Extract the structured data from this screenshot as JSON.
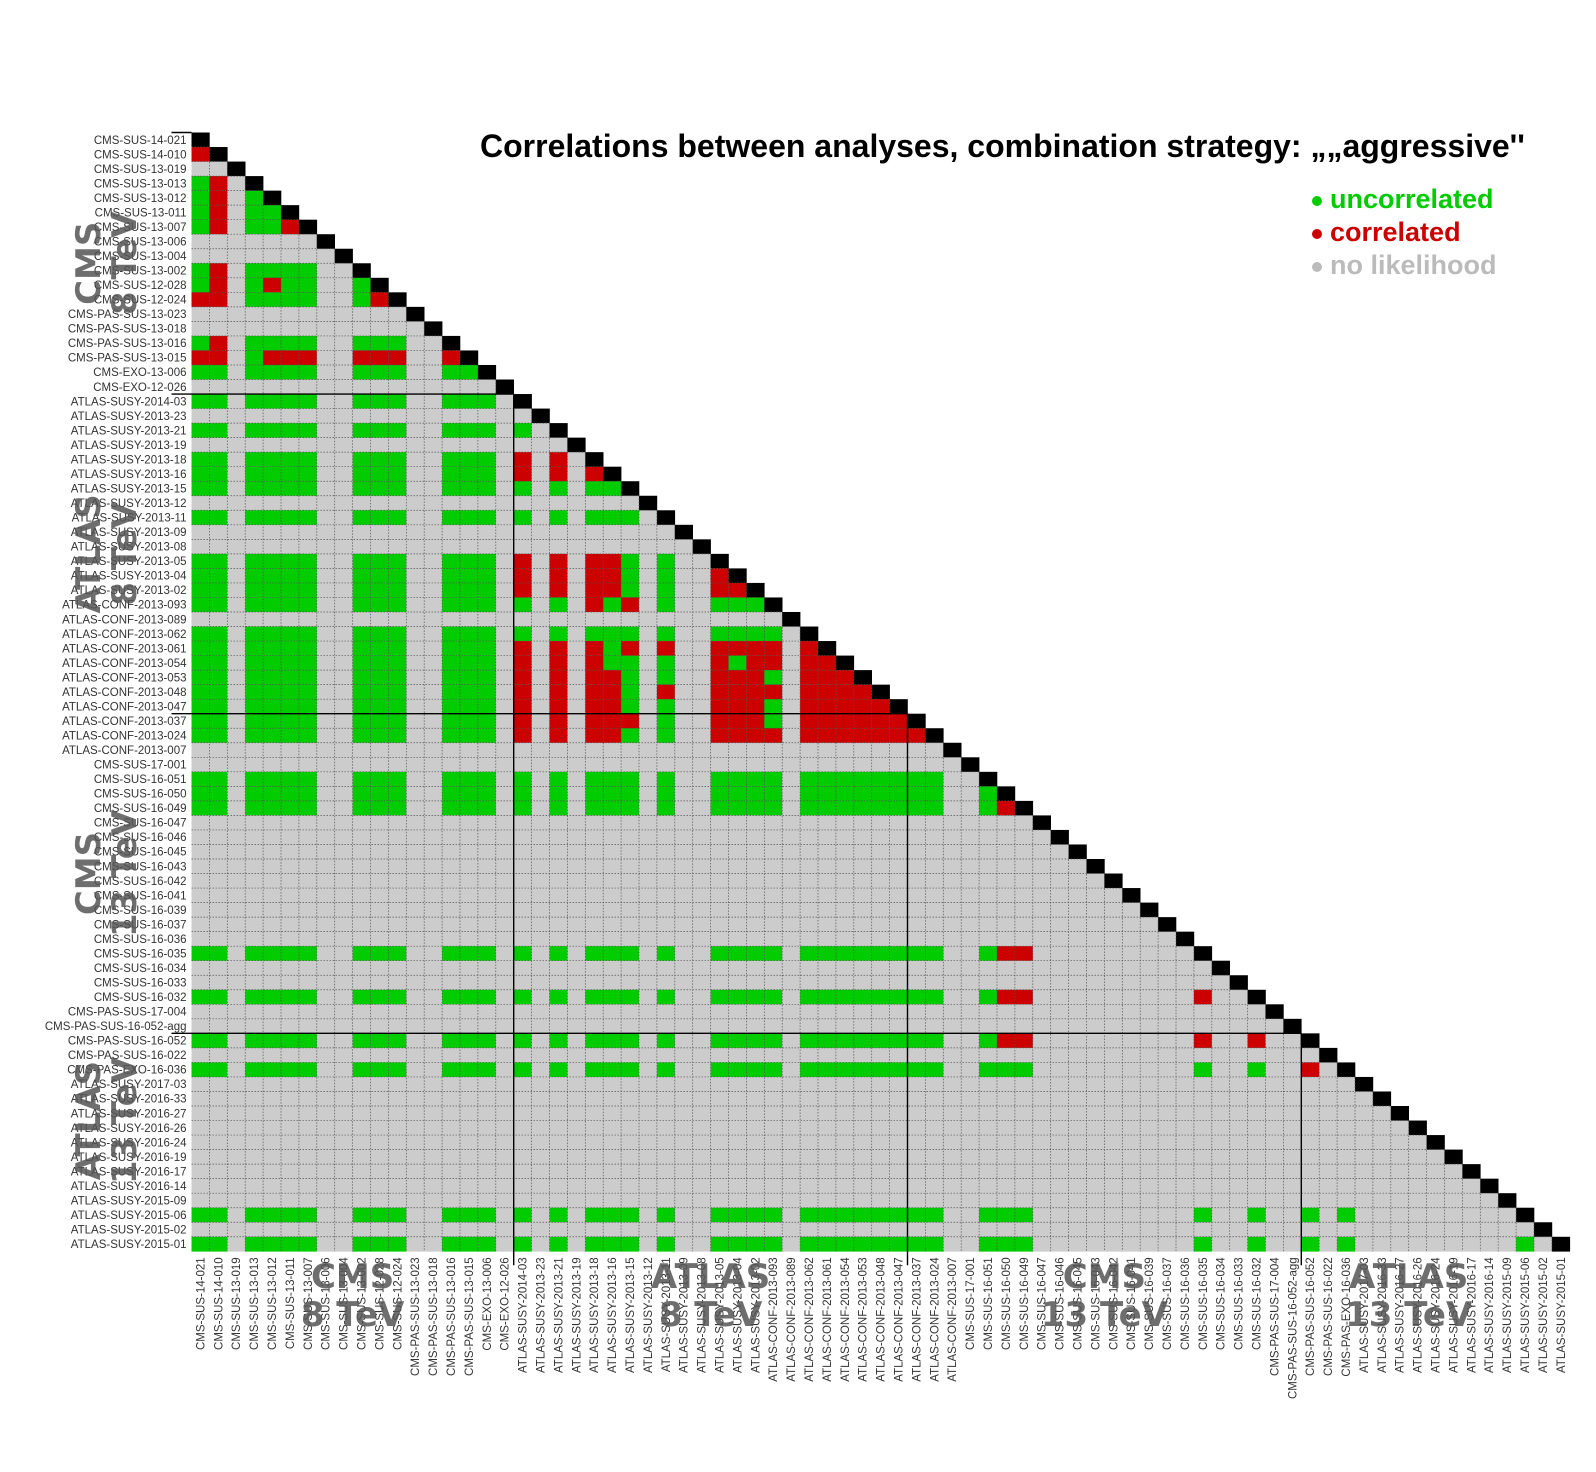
{
  "title": "Correlations between analyses, combination strategy: „„aggressive''",
  "legend": [
    {
      "label": "uncorrelated",
      "color": "#00cc00"
    },
    {
      "label": "correlated",
      "color": "#cc0000"
    },
    {
      "label": "no likelihood",
      "color": "#bbbbbb"
    }
  ],
  "groups": [
    {
      "name": "CMS 8 TeV",
      "line1": "CMS",
      "line2": "8 TeV"
    },
    {
      "name": "ATLAS 8 TeV",
      "line1": "ATLAS",
      "line2": "8 TeV"
    },
    {
      "name": "CMS 13 TeV",
      "line1": "CMS",
      "line2": "13 TeV"
    },
    {
      "name": "ATLAS 13 TeV",
      "line1": "ATLAS",
      "line2": "13 TeV"
    }
  ],
  "chart_data": {
    "type": "heatmap",
    "title": "Correlations between analyses, combination strategy: „„aggressive''",
    "categories_legend": {
      "G": "uncorrelated",
      "R": "correlated",
      "X": "no likelihood",
      "D": "diagonal"
    },
    "colors": {
      "G": "#00cc00",
      "R": "#cc0000",
      "X": "#cccccc",
      "D": "#000000",
      "grid": "#555555"
    },
    "group_sizes": [
      18,
      22,
      22,
      12
    ],
    "labels": [
      "CMS-SUS-14-021",
      "CMS-SUS-14-010",
      "CMS-SUS-13-019",
      "CMS-SUS-13-013",
      "CMS-SUS-13-012",
      "CMS-SUS-13-011",
      "CMS-SUS-13-007",
      "CMS-SUS-13-006",
      "CMS-SUS-13-004",
      "CMS-SUS-13-002",
      "CMS-SUS-12-028",
      "CMS-SUS-12-024",
      "CMS-PAS-SUS-13-023",
      "CMS-PAS-SUS-13-018",
      "CMS-PAS-SUS-13-016",
      "CMS-PAS-SUS-13-015",
      "CMS-EXO-13-006",
      "CMS-EXO-12-026",
      "ATLAS-SUSY-2014-03",
      "ATLAS-SUSY-2013-23",
      "ATLAS-SUSY-2013-21",
      "ATLAS-SUSY-2013-19",
      "ATLAS-SUSY-2013-18",
      "ATLAS-SUSY-2013-16",
      "ATLAS-SUSY-2013-15",
      "ATLAS-SUSY-2013-12",
      "ATLAS-SUSY-2013-11",
      "ATLAS-SUSY-2013-09",
      "ATLAS-SUSY-2013-08",
      "ATLAS-SUSY-2013-05",
      "ATLAS-SUSY-2013-04",
      "ATLAS-SUSY-2013-02",
      "ATLAS-CONF-2013-093",
      "ATLAS-CONF-2013-089",
      "ATLAS-CONF-2013-062",
      "ATLAS-CONF-2013-061",
      "ATLAS-CONF-2013-054",
      "ATLAS-CONF-2013-053",
      "ATLAS-CONF-2013-048",
      "ATLAS-CONF-2013-047",
      "ATLAS-CONF-2013-037",
      "ATLAS-CONF-2013-024",
      "ATLAS-CONF-2013-007",
      "CMS-SUS-17-001",
      "CMS-SUS-16-051",
      "CMS-SUS-16-050",
      "CMS-SUS-16-049",
      "CMS-SUS-16-047",
      "CMS-SUS-16-046",
      "CMS-SUS-16-045",
      "CMS-SUS-16-043",
      "CMS-SUS-16-042",
      "CMS-SUS-16-041",
      "CMS-SUS-16-039",
      "CMS-SUS-16-037",
      "CMS-SUS-16-036",
      "CMS-SUS-16-035",
      "CMS-SUS-16-034",
      "CMS-SUS-16-033",
      "CMS-SUS-16-032",
      "CMS-PAS-SUS-17-004",
      "CMS-PAS-SUS-16-052-agg",
      "CMS-PAS-SUS-16-052",
      "CMS-PAS-SUS-16-022",
      "CMS-PAS-EXO-16-036",
      "ATLAS-SUSY-2017-03",
      "ATLAS-SUSY-2016-33",
      "ATLAS-SUSY-2016-27",
      "ATLAS-SUSY-2016-26",
      "ATLAS-SUSY-2016-24",
      "ATLAS-SUSY-2016-19",
      "ATLAS-SUSY-2016-17",
      "ATLAS-SUSY-2016-14",
      "ATLAS-SUSY-2015-09",
      "ATLAS-SUSY-2015-06",
      "ATLAS-SUSY-2015-02",
      "ATLAS-SUSY-2015-01"
    ],
    "no_likelihood": [
      2,
      7,
      8,
      12,
      13,
      17,
      19,
      21,
      25,
      27,
      28,
      33,
      42,
      43,
      47,
      48,
      49,
      50,
      51,
      52,
      53,
      54,
      55,
      57,
      58,
      60,
      61,
      63,
      65,
      66,
      67,
      68,
      69,
      70,
      71,
      72,
      73,
      75
    ],
    "correlated_pairs": [
      [
        1,
        0
      ],
      [
        3,
        1
      ],
      [
        4,
        1
      ],
      [
        5,
        1
      ],
      [
        6,
        1
      ],
      [
        6,
        5
      ],
      [
        9,
        1
      ],
      [
        10,
        1
      ],
      [
        10,
        4
      ],
      [
        11,
        1
      ],
      [
        11,
        0
      ],
      [
        11,
        10
      ],
      [
        14,
        1
      ],
      [
        15,
        0
      ],
      [
        15,
        1
      ],
      [
        15,
        4
      ],
      [
        15,
        5
      ],
      [
        15,
        6
      ],
      [
        15,
        9
      ],
      [
        15,
        10
      ],
      [
        15,
        11
      ],
      [
        15,
        14
      ],
      [
        22,
        18
      ],
      [
        22,
        20
      ],
      [
        23,
        18
      ],
      [
        23,
        20
      ],
      [
        23,
        22
      ],
      [
        29,
        18
      ],
      [
        29,
        20
      ],
      [
        29,
        22
      ],
      [
        29,
        23
      ],
      [
        30,
        18
      ],
      [
        30,
        20
      ],
      [
        30,
        22
      ],
      [
        30,
        23
      ],
      [
        30,
        29
      ],
      [
        31,
        18
      ],
      [
        31,
        20
      ],
      [
        31,
        22
      ],
      [
        31,
        23
      ],
      [
        31,
        29
      ],
      [
        31,
        30
      ],
      [
        32,
        22
      ],
      [
        32,
        24
      ],
      [
        35,
        18
      ],
      [
        35,
        20
      ],
      [
        35,
        22
      ],
      [
        35,
        24
      ],
      [
        35,
        26
      ],
      [
        35,
        29
      ],
      [
        35,
        30
      ],
      [
        35,
        31
      ],
      [
        35,
        32
      ],
      [
        35,
        34
      ],
      [
        36,
        18
      ],
      [
        36,
        20
      ],
      [
        36,
        22
      ],
      [
        36,
        29
      ],
      [
        36,
        31
      ],
      [
        36,
        32
      ],
      [
        36,
        34
      ],
      [
        36,
        35
      ],
      [
        37,
        18
      ],
      [
        37,
        20
      ],
      [
        37,
        22
      ],
      [
        37,
        23
      ],
      [
        37,
        29
      ],
      [
        37,
        30
      ],
      [
        37,
        31
      ],
      [
        37,
        34
      ],
      [
        37,
        35
      ],
      [
        37,
        36
      ],
      [
        38,
        18
      ],
      [
        38,
        20
      ],
      [
        38,
        22
      ],
      [
        38,
        23
      ],
      [
        38,
        26
      ],
      [
        38,
        29
      ],
      [
        38,
        30
      ],
      [
        38,
        31
      ],
      [
        38,
        32
      ],
      [
        38,
        34
      ],
      [
        38,
        35
      ],
      [
        38,
        36
      ],
      [
        38,
        37
      ],
      [
        39,
        18
      ],
      [
        39,
        20
      ],
      [
        39,
        22
      ],
      [
        39,
        23
      ],
      [
        39,
        29
      ],
      [
        39,
        30
      ],
      [
        39,
        31
      ],
      [
        39,
        34
      ],
      [
        39,
        35
      ],
      [
        39,
        36
      ],
      [
        39,
        37
      ],
      [
        39,
        38
      ],
      [
        40,
        18
      ],
      [
        40,
        20
      ],
      [
        40,
        22
      ],
      [
        40,
        23
      ],
      [
        40,
        24
      ],
      [
        40,
        29
      ],
      [
        40,
        30
      ],
      [
        40,
        31
      ],
      [
        40,
        34
      ],
      [
        40,
        35
      ],
      [
        40,
        36
      ],
      [
        40,
        37
      ],
      [
        40,
        38
      ],
      [
        40,
        39
      ],
      [
        41,
        18
      ],
      [
        41,
        20
      ],
      [
        41,
        22
      ],
      [
        41,
        23
      ],
      [
        41,
        29
      ],
      [
        41,
        30
      ],
      [
        41,
        31
      ],
      [
        41,
        32
      ],
      [
        41,
        34
      ],
      [
        41,
        35
      ],
      [
        41,
        36
      ],
      [
        41,
        37
      ],
      [
        41,
        38
      ],
      [
        41,
        39
      ],
      [
        41,
        40
      ],
      [
        46,
        45
      ],
      [
        56,
        45
      ],
      [
        56,
        46
      ],
      [
        59,
        45
      ],
      [
        59,
        46
      ],
      [
        59,
        56
      ],
      [
        62,
        45
      ],
      [
        62,
        46
      ],
      [
        62,
        56
      ],
      [
        62,
        59
      ],
      [
        64,
        62
      ]
    ]
  }
}
